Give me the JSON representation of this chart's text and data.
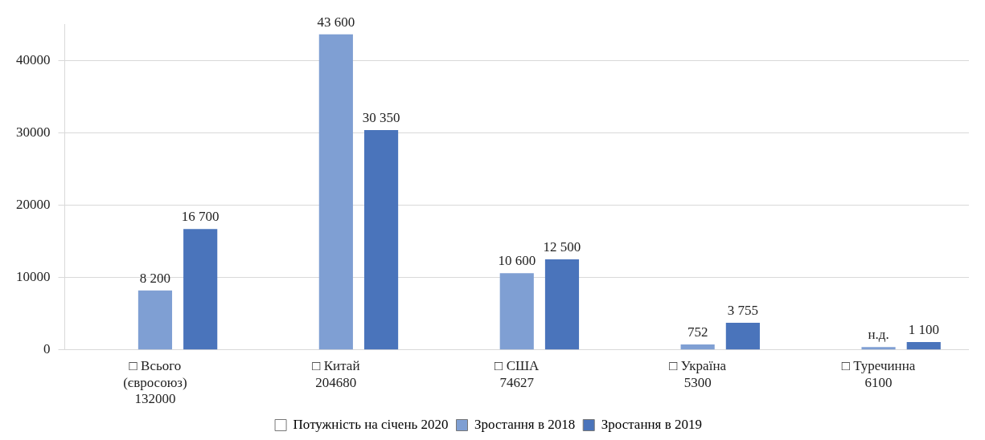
{
  "chart_data": {
    "type": "bar",
    "categories": [
      "□ Всього\n(євросоюз)\n132000",
      "□ Китай\n204680",
      "□ США\n74627",
      "□ Україна\n5300",
      "□ Туречинна\n6100"
    ],
    "series": [
      {
        "name": "Потужність на січень 2020",
        "color": "#ffffff",
        "values": [
          null,
          null,
          null,
          null,
          null
        ]
      },
      {
        "name": "Зростання в 2018",
        "color": "#7f9fd3",
        "values": [
          8200,
          43600,
          10600,
          752,
          400
        ],
        "value_labels": [
          "8 200",
          "43 600",
          "10 600",
          "752",
          "н.д."
        ]
      },
      {
        "name": "Зростання в 2019",
        "color": "#4a74bb",
        "values": [
          16700,
          30350,
          12500,
          3755,
          1100
        ],
        "value_labels": [
          "16 700",
          "30 350",
          "12 500",
          "3 755",
          "1 100"
        ]
      }
    ],
    "ylim": [
      0,
      45000
    ],
    "yticks": [
      0,
      10000,
      20000,
      30000,
      40000
    ],
    "grid": "y",
    "legend": "bottom"
  }
}
